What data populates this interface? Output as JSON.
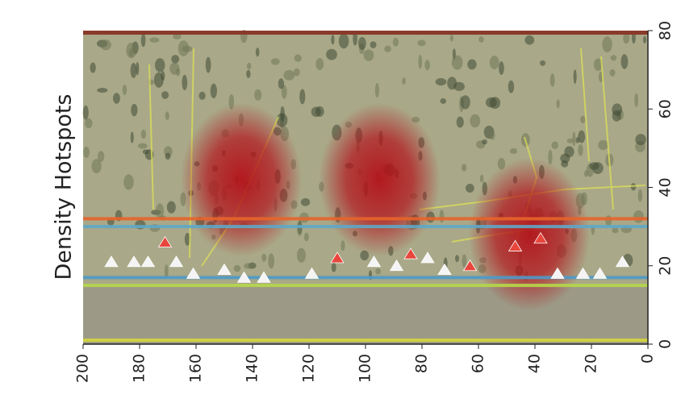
{
  "chart_data": {
    "type": "scatter",
    "ylabel": "Density Hotspots",
    "xlim": [
      200,
      0
    ],
    "ylim": [
      0,
      80
    ],
    "xticks": [
      200,
      180,
      160,
      140,
      120,
      100,
      80,
      60,
      40,
      20,
      0
    ],
    "yticks": [
      0,
      20,
      40,
      60,
      80
    ],
    "hotspots": {
      "color": "#b3121a",
      "x": [
        144,
        95,
        42
      ],
      "y": [
        42,
        42,
        28
      ]
    },
    "hlines": [
      {
        "y": 32,
        "color": "#e8642a"
      },
      {
        "y": 30,
        "color": "#5fa8c8"
      },
      {
        "y": 17,
        "color": "#4f9ac8"
      },
      {
        "y": 15,
        "color": "#b6d84a"
      },
      {
        "y": 1,
        "color": "#d6d83a"
      }
    ],
    "series": [
      {
        "color": "#f4f4f4",
        "x": [
          190,
          182,
          177,
          167,
          161,
          150,
          143,
          136,
          119,
          97,
          89,
          78,
          72,
          32,
          23,
          17,
          9
        ],
        "y": [
          21,
          21,
          21,
          21,
          18,
          19,
          17,
          17,
          18,
          21,
          20,
          22,
          19,
          18,
          18,
          18,
          21
        ]
      },
      {
        "color": "#e8463c",
        "x": [
          171,
          110,
          84,
          63,
          47,
          38
        ],
        "y": [
          26,
          22,
          23,
          20,
          25,
          27
        ]
      }
    ]
  }
}
